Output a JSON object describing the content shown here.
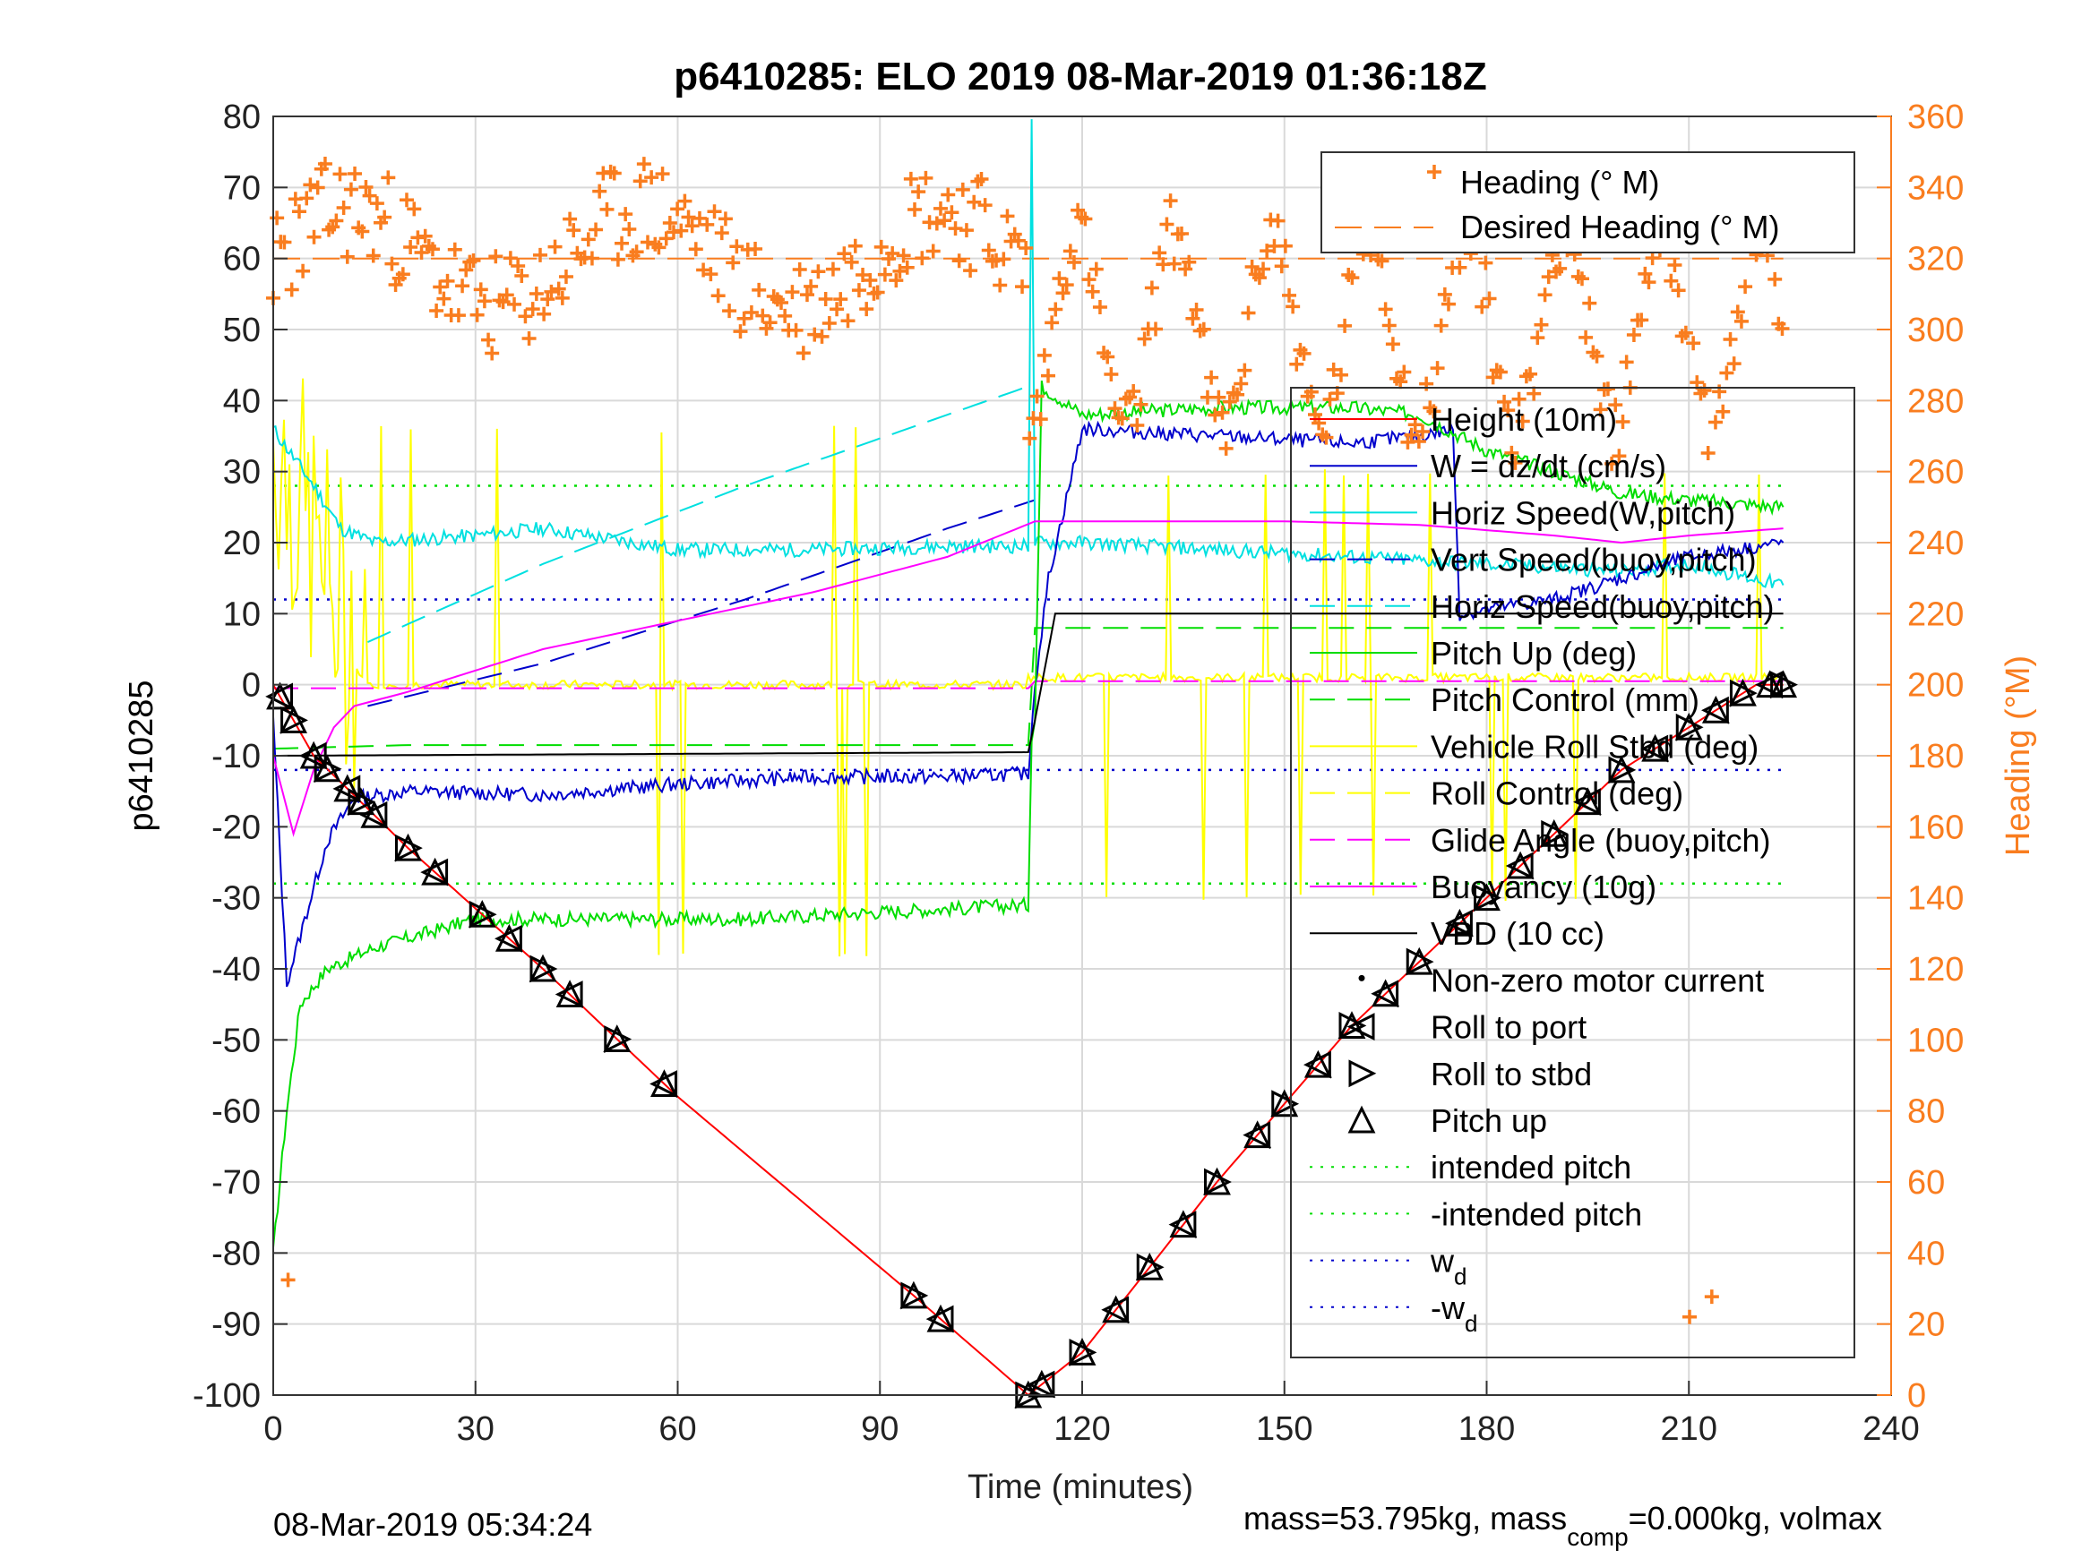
{
  "chart_data": {
    "type": "line",
    "title": "p6410285: ELO 2019 08-Mar-2019 01:36:18Z",
    "xlabel": "Time (minutes)",
    "ylabel": "p6410285",
    "ylabel_right": "Heading (°M)",
    "xlim": [
      0,
      240
    ],
    "ylim": [
      -100,
      80
    ],
    "ylim_right": [
      0,
      360
    ],
    "x_ticks": [
      "0",
      "30",
      "60",
      "90",
      "120",
      "150",
      "180",
      "210",
      "240"
    ],
    "y_ticks": [
      "80",
      "70",
      "60",
      "50",
      "40",
      "30",
      "20",
      "10",
      "0",
      "-10",
      "-20",
      "-30",
      "-40",
      "-50",
      "-60",
      "-70",
      "-80",
      "-90",
      "-100"
    ],
    "y_right_ticks": [
      "360",
      "340",
      "320",
      "300",
      "280",
      "260",
      "240",
      "220",
      "200",
      "180",
      "160",
      "140",
      "120",
      "100",
      "80",
      "60",
      "40",
      "20",
      "0"
    ],
    "grid": true,
    "footer_left": "08-Mar-2019 05:34:24",
    "footer_right": "mass=53.795kg, mass",
    "footer_right_sub": "comp",
    "footer_right_tail": "=0.000kg, volmax",
    "colors": {
      "heading": "#f97d1f",
      "height": "#ff0000",
      "w": "#0000cc",
      "horiz": "#00e0e0",
      "pitch": "#00dd00",
      "roll": "#ffff00",
      "glide": "#ff00ff",
      "vbd": "#000000"
    },
    "legend_top": {
      "position": "top-right",
      "entries": [
        "Heading (° M)",
        "Desired Heading (° M)"
      ]
    },
    "legend_main": {
      "position": "right",
      "entries": [
        {
          "label": "Height (10m)"
        },
        {
          "label": "W = dz/dt (cm/s)"
        },
        {
          "label": "Horiz Speed(W,pitch)"
        },
        {
          "label": "Vert Speed(buoy,pitch)"
        },
        {
          "label": "Horiz Speed(buoy,pitch)"
        },
        {
          "label": "Pitch Up (deg)"
        },
        {
          "label": "Pitch Control (mm)"
        },
        {
          "label": "Vehicle Roll Stbd (deg)"
        },
        {
          "label": "Roll Control (deg)"
        },
        {
          "label": "Glide Angle (buoy,pitch)"
        },
        {
          "label": "Buoyancy (10g)"
        },
        {
          "label": "VBD (10 cc)"
        },
        {
          "label": "Non-zero motor current"
        },
        {
          "label": "Roll to port"
        },
        {
          "label": "Roll to stbd"
        },
        {
          "label": "Pitch up"
        },
        {
          "label": "intended pitch"
        },
        {
          "label": "-intended pitch"
        },
        {
          "label": "w",
          "sub": "d"
        },
        {
          "label": "-w",
          "sub": "d"
        }
      ]
    },
    "reference_lines": {
      "intended_pitch": 28,
      "w_d": 12
    },
    "series": [
      {
        "name": "Height (10m)",
        "points": [
          [
            0,
            0
          ],
          [
            6,
            -10
          ],
          [
            20,
            -23
          ],
          [
            40,
            -40
          ],
          [
            60,
            -58
          ],
          [
            80,
            -74
          ],
          [
            95,
            -86
          ],
          [
            112,
            -100
          ],
          [
            120,
            -94
          ],
          [
            140,
            -70
          ],
          [
            160,
            -48
          ],
          [
            180,
            -30
          ],
          [
            200,
            -12
          ],
          [
            220,
            0
          ],
          [
            224,
            0
          ]
        ]
      },
      {
        "name": "W = dz/dt (cm/s)",
        "points": [
          [
            0,
            -5
          ],
          [
            2,
            -42
          ],
          [
            5,
            -32
          ],
          [
            8,
            -22
          ],
          [
            12,
            -16
          ],
          [
            20,
            -15
          ],
          [
            40,
            -15.5
          ],
          [
            60,
            -14
          ],
          [
            80,
            -13
          ],
          [
            100,
            -13
          ],
          [
            112,
            -12.5
          ],
          [
            113,
            0
          ],
          [
            115,
            15
          ],
          [
            120,
            36
          ],
          [
            140,
            35
          ],
          [
            160,
            34
          ],
          [
            170,
            35
          ],
          [
            175,
            36
          ],
          [
            176,
            10
          ],
          [
            190,
            12
          ],
          [
            200,
            15
          ],
          [
            210,
            18
          ],
          [
            224,
            20
          ]
        ]
      },
      {
        "name": "Horiz Speed(W,pitch)",
        "points": [
          [
            0,
            36
          ],
          [
            3,
            32
          ],
          [
            6,
            28
          ],
          [
            10,
            22
          ],
          [
            15,
            20
          ],
          [
            30,
            21
          ],
          [
            40,
            22
          ],
          [
            60,
            19
          ],
          [
            80,
            19
          ],
          [
            100,
            19.5
          ],
          [
            112,
            19.5
          ],
          [
            112.5,
            80
          ],
          [
            113,
            20
          ],
          [
            120,
            20
          ],
          [
            140,
            19
          ],
          [
            160,
            18
          ],
          [
            180,
            17
          ],
          [
            200,
            16
          ],
          [
            210,
            17
          ],
          [
            224,
            14
          ]
        ]
      },
      {
        "name": "Pitch Up (deg)",
        "points": [
          [
            0,
            -80
          ],
          [
            2,
            -60
          ],
          [
            4,
            -45
          ],
          [
            8,
            -40
          ],
          [
            15,
            -37
          ],
          [
            30,
            -33
          ],
          [
            50,
            -33
          ],
          [
            70,
            -33
          ],
          [
            90,
            -32
          ],
          [
            112,
            -31
          ],
          [
            112.5,
            -7
          ],
          [
            113,
            -5
          ],
          [
            114,
            42
          ],
          [
            120,
            38
          ],
          [
            140,
            39
          ],
          [
            160,
            39
          ],
          [
            170,
            38
          ],
          [
            180,
            33
          ],
          [
            190,
            30
          ],
          [
            200,
            27
          ],
          [
            210,
            26
          ],
          [
            224,
            25
          ]
        ]
      },
      {
        "name": "Pitch Control (mm)",
        "points": [
          [
            0,
            -9
          ],
          [
            20,
            -8.5
          ],
          [
            60,
            -8.5
          ],
          [
            112,
            -8.5
          ],
          [
            113,
            8
          ],
          [
            150,
            8
          ],
          [
            224,
            8
          ]
        ]
      },
      {
        "name": "Glide Angle (buoy,pitch)",
        "points": [
          [
            0,
            -0.5
          ],
          [
            112,
            -0.5
          ],
          [
            113,
            0.5
          ],
          [
            224,
            0.5
          ]
        ]
      },
      {
        "name": "Buoyancy (10g)",
        "points": [
          [
            0,
            -10
          ],
          [
            3,
            -21
          ],
          [
            6,
            -12
          ],
          [
            9,
            -6
          ],
          [
            12,
            -3
          ],
          [
            20,
            -1
          ],
          [
            40,
            5
          ],
          [
            60,
            9
          ],
          [
            80,
            13
          ],
          [
            100,
            18
          ],
          [
            113,
            23
          ],
          [
            130,
            23
          ],
          [
            150,
            23
          ],
          [
            170,
            22.5
          ],
          [
            190,
            21
          ],
          [
            200,
            20
          ],
          [
            210,
            21
          ],
          [
            224,
            22
          ]
        ]
      },
      {
        "name": "VBD (10 cc)",
        "points": [
          [
            0,
            -10
          ],
          [
            112,
            -9.5
          ],
          [
            113,
            -5
          ],
          [
            116,
            10
          ],
          [
            150,
            10
          ],
          [
            224,
            10
          ]
        ]
      },
      {
        "name": "Vert Speed(buoy,pitch)",
        "points": [
          [
            14,
            -3
          ],
          [
            40,
            3
          ],
          [
            70,
            12
          ],
          [
            100,
            22
          ],
          [
            113,
            26
          ]
        ]
      },
      {
        "name": "Horiz Speed(buoy,pitch)",
        "points": [
          [
            14,
            6
          ],
          [
            40,
            17
          ],
          [
            70,
            28
          ],
          [
            100,
            38
          ],
          [
            112,
            42
          ]
        ]
      },
      {
        "name": "Desired Heading (° M)",
        "points": [
          [
            0,
            320
          ],
          [
            224,
            320
          ]
        ]
      }
    ]
  }
}
